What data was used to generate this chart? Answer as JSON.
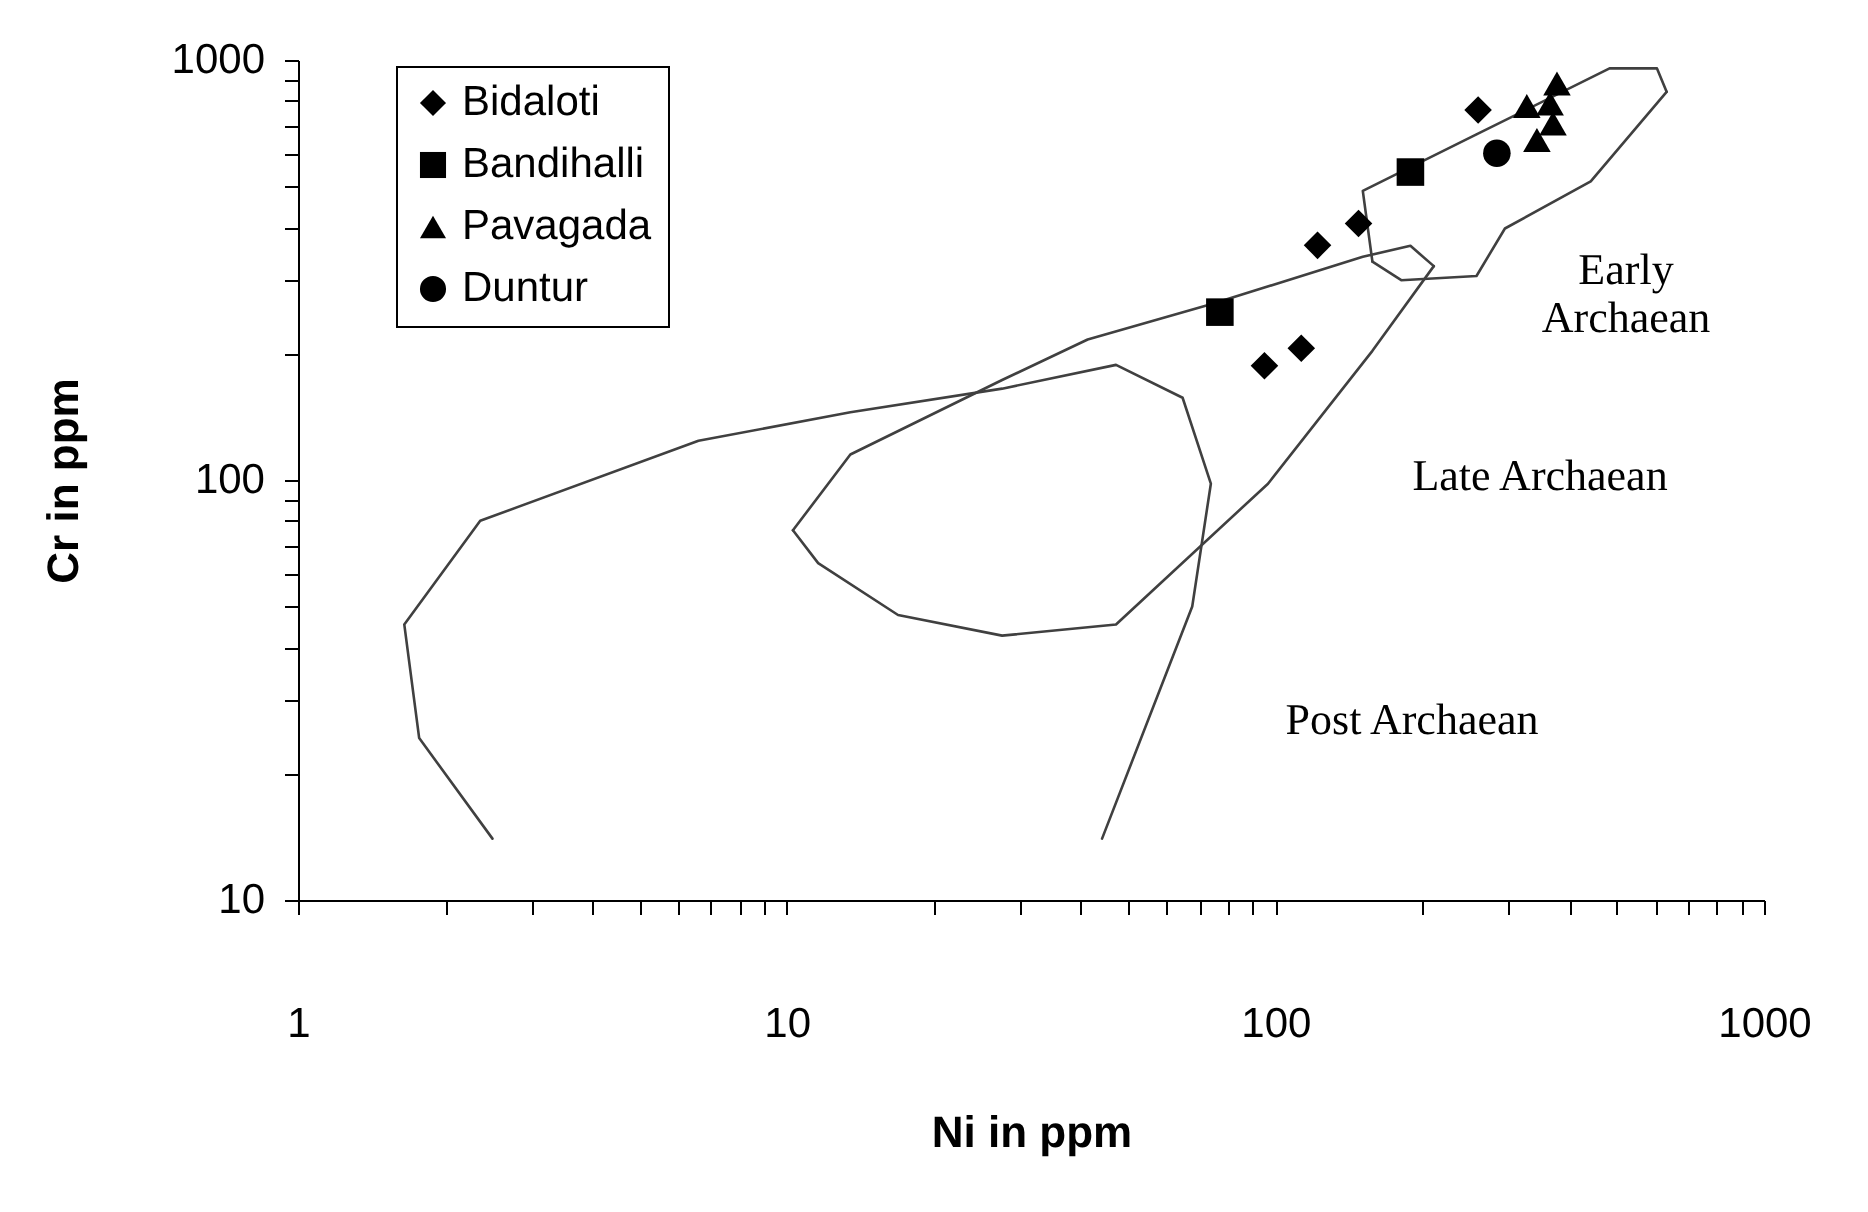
{
  "chart_data": {
    "type": "scatter",
    "xlabel": "Ni in ppm",
    "ylabel": "Cr in ppm",
    "log": "xy",
    "legend": "top left",
    "grid": false,
    "xlim": [
      1,
      1000
    ],
    "ylim": [
      10,
      1000
    ],
    "xticks": [
      1,
      {
        "value": 2,
        "label": null
      },
      {
        "value": 3,
        "label": null
      },
      {
        "value": 4,
        "label": null
      },
      {
        "value": 5,
        "label": null
      },
      {
        "value": 6,
        "label": null
      },
      {
        "value": 7,
        "label": null
      },
      {
        "value": 8,
        "label": null
      },
      {
        "value": 9,
        "label": null
      },
      10,
      {
        "value": 20,
        "label": null
      },
      {
        "value": 30,
        "label": null
      },
      {
        "value": 40,
        "label": null
      },
      {
        "value": 50,
        "label": null
      },
      {
        "value": 60,
        "label": null
      },
      {
        "value": 70,
        "label": null
      },
      {
        "value": 80,
        "label": null
      },
      {
        "value": 90,
        "label": null
      },
      100,
      {
        "value": 200,
        "label": null
      },
      {
        "value": 300,
        "label": null
      },
      {
        "value": 400,
        "label": null
      },
      {
        "value": 500,
        "label": null
      },
      {
        "value": 600,
        "label": null
      },
      {
        "value": 700,
        "label": null
      },
      {
        "value": 800,
        "label": null
      },
      {
        "value": 900,
        "label": null
      },
      1000
    ],
    "yticks": [
      10,
      {
        "value": 20,
        "label": null
      },
      {
        "value": 30,
        "label": null
      },
      {
        "value": 40,
        "label": null
      },
      {
        "value": 50,
        "label": null
      },
      {
        "value": 60,
        "label": null
      },
      {
        "value": 70,
        "label": null
      },
      {
        "value": 80,
        "label": null
      },
      {
        "value": 90,
        "label": null
      },
      100,
      {
        "value": 200,
        "label": null
      },
      {
        "value": 300,
        "label": null
      },
      {
        "value": 400,
        "label": null
      },
      {
        "value": 500,
        "label": null
      },
      {
        "value": 600,
        "label": null
      },
      {
        "value": 700,
        "label": null
      },
      {
        "value": 800,
        "label": null
      },
      {
        "value": 900,
        "label": null
      },
      1000
    ],
    "series": [
      {
        "name": "Bidaloti",
        "marker": "diamond",
        "color": "#000000",
        "x": [
          260,
          148,
          122,
          113,
          95
        ],
        "values": [
          760,
          408,
          362,
          206,
          187
        ]
      },
      {
        "name": "Bandihalli",
        "marker": "square",
        "color": "#000000",
        "x": [
          189,
          77
        ],
        "values": [
          541,
          251
        ]
      },
      {
        "name": "Pavagada",
        "marker": "triangle",
        "color": "#000000",
        "x": [
          377,
          365,
          370,
          343,
          327
        ],
        "values": [
          879,
          788,
          706,
          645,
          777
        ]
      },
      {
        "name": "Duntur",
        "marker": "circle",
        "color": "#000000",
        "x": [
          284
        ],
        "values": [
          600
        ]
      },
      {
        "type": "line",
        "color": "#404040",
        "x": [
          2.5,
          1.77,
          1.65,
          2.36,
          6.6,
          13.5,
          27.6,
          47.2,
          64.6,
          73.8,
          67.6,
          44.2
        ],
        "values": [
          14,
          24.3,
          45.3,
          80,
          124,
          145,
          165,
          188,
          157,
          98,
          50,
          14
        ]
      },
      {
        "type": "line",
        "color": "#404040",
        "x": [
          10.3,
          13.5,
          27.6,
          41.3,
          73.8,
          151,
          189,
          211
        ],
        "values": [
          75.9,
          115,
          173,
          216,
          262,
          340,
          361,
          323
        ]
      },
      {
        "type": "line",
        "color": "#404040",
        "x": [
          211,
          158,
          96.6,
          47.2,
          27.6,
          16.9,
          11.6,
          10.3
        ],
        "values": [
          323,
          203,
          98,
          45.3,
          42.6,
          47.7,
          63.4,
          75.9
        ]
      },
      {
        "type": "line",
        "color": "#404040",
        "x": [
          158,
          151,
          258,
          483,
          604,
          632
        ],
        "values": [
          331,
          488,
          665,
          955,
          955,
          840
        ]
      },
      {
        "type": "line",
        "color": "#404040",
        "x": [
          632,
          442,
          295,
          258,
          181,
          158
        ],
        "values": [
          840,
          514,
          397,
          306,
          299,
          331
        ]
      }
    ],
    "annotations": [
      "Early\nArchaean",
      "Late Archaean",
      "Post Archaean"
    ]
  }
}
